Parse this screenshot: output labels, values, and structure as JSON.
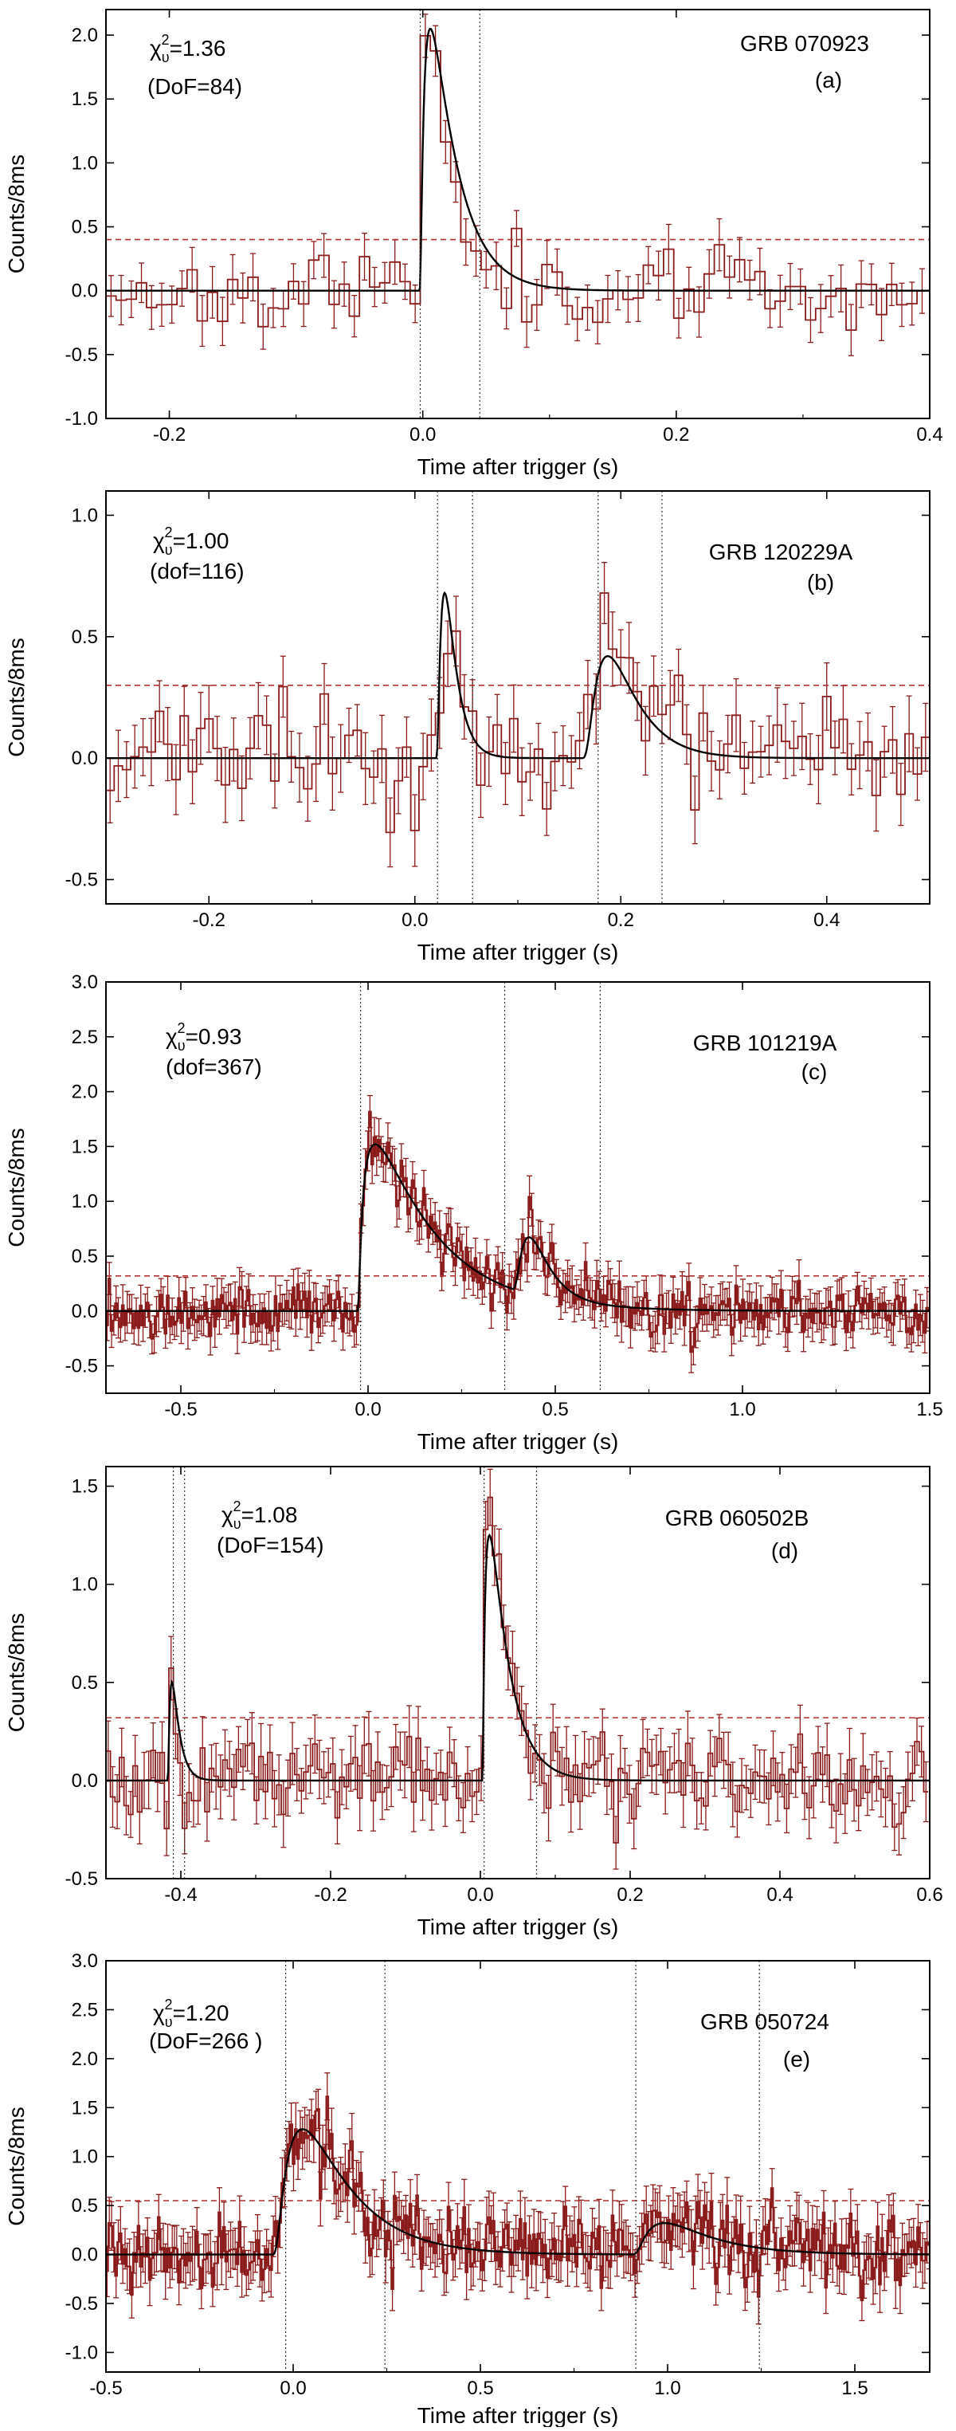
{
  "colors": {
    "data": "#8b1a1a",
    "model": "#000000",
    "threshold": "#b03030",
    "frame": "#000000"
  },
  "chart_data": [
    {
      "type": "line",
      "panel_label": "(a)",
      "title": "GRB 070923",
      "chi2_label": "χ",
      "chi2_sub": "υ",
      "chi2_sup": "2",
      "chi2_value": "=1.36",
      "dof_label": "(DoF=84)",
      "xlabel": "Time after trigger (s)",
      "ylabel": "Counts/8ms",
      "xlim": [
        -0.25,
        0.4
      ],
      "ylim": [
        -1.0,
        2.2
      ],
      "xticks": [
        -0.2,
        0.0,
        0.2,
        0.4
      ],
      "xtick_labels": [
        "-0.2",
        "0.0",
        "0.2",
        "0.4"
      ],
      "yticks": [
        -1.0,
        -0.5,
        0.0,
        0.5,
        1.0,
        1.5,
        2.0
      ],
      "ytick_labels": [
        "-1.0",
        "-0.5",
        "0.0",
        "0.5",
        "1.0",
        "1.5",
        "2.0"
      ],
      "bin_width": 0.008,
      "threshold": 0.4,
      "vlines": [
        -0.002,
        0.045
      ],
      "noise_amp": 0.15,
      "err": 0.17,
      "peaks": [
        {
          "t0": -0.003,
          "amp": 2.05,
          "rise": 0.004,
          "decay": 0.02
        }
      ],
      "seed": 11
    },
    {
      "type": "line",
      "panel_label": "(b)",
      "title": "GRB 120229A",
      "chi2_label": "χ",
      "chi2_sub": "υ",
      "chi2_sup": "2",
      "chi2_value": "=1.00",
      "dof_label": "(dof=116)",
      "xlabel": "Time after trigger (s)",
      "ylabel": "Counts/8ms",
      "xlim": [
        -0.3,
        0.5
      ],
      "ylim": [
        -0.6,
        1.1
      ],
      "xticks": [
        -0.2,
        0.0,
        0.2,
        0.4
      ],
      "xtick_labels": [
        "-0.2",
        "0.0",
        "0.2",
        "0.4"
      ],
      "yticks": [
        -0.5,
        0.0,
        0.5,
        1.0
      ],
      "ytick_labels": [
        "-0.5",
        "0.0",
        "0.5",
        "1.0"
      ],
      "bin_width": 0.008,
      "threshold": 0.3,
      "vlines": [
        0.022,
        0.056,
        0.178,
        0.24
      ],
      "noise_amp": 0.12,
      "err": 0.13,
      "peaks": [
        {
          "t0": 0.02,
          "amp": 0.68,
          "rise": 0.008,
          "decay": 0.01
        },
        {
          "t0": 0.16,
          "amp": 0.42,
          "rise": 0.03,
          "decay": 0.025
        }
      ],
      "seed": 23
    },
    {
      "type": "line",
      "panel_label": "(c)",
      "title": "GRB 101219A",
      "chi2_label": "χ",
      "chi2_sub": "υ",
      "chi2_sup": "2",
      "chi2_value": "=0.93",
      "dof_label": "(dof=367)",
      "xlabel": "Time after trigger (s)",
      "ylabel": "Counts/8ms",
      "xlim": [
        -0.7,
        1.5
      ],
      "ylim": [
        -0.75,
        3.0
      ],
      "xticks": [
        -0.5,
        0.0,
        0.5,
        1.0,
        1.5
      ],
      "xtick_labels": [
        "-0.5",
        "0.0",
        "0.5",
        "1.0",
        "1.5"
      ],
      "yticks": [
        -0.5,
        0.0,
        0.5,
        1.0,
        1.5,
        2.0,
        2.5,
        3.0
      ],
      "ytick_labels": [
        "-0.5",
        "0.0",
        "0.5",
        "1.0",
        "1.5",
        "2.0",
        "2.5",
        "3.0"
      ],
      "bin_width": 0.006,
      "threshold": 0.32,
      "vlines": [
        -0.02,
        0.365,
        0.62
      ],
      "noise_amp": 0.12,
      "err": 0.16,
      "peaks": [
        {
          "t0": -0.03,
          "amp": 1.52,
          "rise": 0.015,
          "decay": 0.16
        },
        {
          "t0": 0.38,
          "amp": 0.52,
          "rise": 0.06,
          "decay": 0.045
        }
      ],
      "seed": 37
    },
    {
      "type": "line",
      "panel_label": "(d)",
      "title": "GRB 060502B",
      "chi2_label": "χ",
      "chi2_sub": "υ",
      "chi2_sup": "2",
      "chi2_value": "=1.08",
      "dof_label": "(DoF=154)",
      "xlabel": "Time after trigger (s)",
      "ylabel": "Counts/8ms",
      "xlim": [
        -0.5,
        0.6
      ],
      "ylim": [
        -0.5,
        1.6
      ],
      "xticks": [
        -0.4,
        -0.2,
        0.0,
        0.2,
        0.4,
        0.6
      ],
      "xtick_labels": [
        "-0.4",
        "-0.2",
        "0.0",
        "0.2",
        "0.4",
        "0.6"
      ],
      "yticks": [
        -0.5,
        0.0,
        0.5,
        1.0,
        1.5
      ],
      "ytick_labels": [
        "-0.5",
        "0.0",
        "0.5",
        "1.0",
        "1.5"
      ],
      "bin_width": 0.006,
      "threshold": 0.32,
      "vlines": [
        -0.41,
        -0.395,
        0.005,
        0.075
      ],
      "noise_amp": 0.11,
      "err": 0.14,
      "peaks": [
        {
          "t0": -0.418,
          "amp": 0.5,
          "rise": 0.004,
          "decay": 0.009
        },
        {
          "t0": 0.002,
          "amp": 1.25,
          "rise": 0.004,
          "decay": 0.025
        }
      ],
      "seed": 51
    },
    {
      "type": "line",
      "panel_label": "(e)",
      "title": "GRB 050724",
      "chi2_label": "χ",
      "chi2_sub": "υ",
      "chi2_sup": "2",
      "chi2_value": "=1.20",
      "dof_label": "(DoF=266 )",
      "xlabel": "Time after trigger (s)",
      "ylabel": "Counts/8ms",
      "xlim": [
        -0.5,
        1.7
      ],
      "ylim": [
        -1.2,
        3.0
      ],
      "xticks": [
        -0.5,
        0.0,
        0.5,
        1.0,
        1.5
      ],
      "xtick_labels": [
        "-0.5",
        "0.0",
        "0.5",
        "1.0",
        "1.5"
      ],
      "yticks": [
        -1.0,
        -0.5,
        0.0,
        0.5,
        1.0,
        1.5,
        2.0,
        2.5,
        3.0
      ],
      "ytick_labels": [
        "-1.0",
        "-0.5",
        "0.0",
        "0.5",
        "1.0",
        "1.5",
        "2.0",
        "2.5",
        "3.0"
      ],
      "bin_width": 0.006,
      "threshold": 0.55,
      "vlines": [
        -0.02,
        0.245,
        0.915,
        1.245
      ],
      "noise_amp": 0.17,
      "err": 0.24,
      "peaks": [
        {
          "t0": -0.06,
          "amp": 1.28,
          "rise": 0.06,
          "decay": 0.12
        },
        {
          "t0": 0.9,
          "amp": 0.32,
          "rise": 0.07,
          "decay": 0.12
        }
      ],
      "seed": 67
    }
  ]
}
